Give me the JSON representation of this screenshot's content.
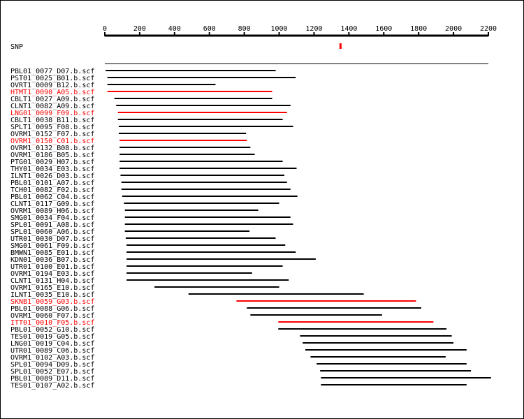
{
  "axis": {
    "min": 0,
    "max": 2200,
    "ticks": [
      0,
      200,
      400,
      600,
      800,
      1000,
      1200,
      1400,
      1600,
      1800,
      2000,
      2200
    ]
  },
  "snp": {
    "label": "SNP",
    "position": 1350,
    "color": "#ff0000"
  },
  "reference": {
    "start": 0,
    "end": 2200
  },
  "colors": {
    "normal": "#000000",
    "highlight": "#ff0000"
  },
  "reads": [
    {
      "name": "PBL01_0077_D07.b.scf",
      "start": 5,
      "end": 980,
      "highlight": false
    },
    {
      "name": "PST01_0025_B01.b.scf",
      "start": 15,
      "end": 1095,
      "highlight": false
    },
    {
      "name": "OVRT1_0009_B12.b.scf",
      "start": 15,
      "end": 635,
      "highlight": false
    },
    {
      "name": "HTMT1_0090_A05.b.scf",
      "start": 15,
      "end": 960,
      "highlight": true
    },
    {
      "name": "CBLT1_0027_A09.b.scf",
      "start": 55,
      "end": 960,
      "highlight": false
    },
    {
      "name": "CLNT1_0082_A09.b.scf",
      "start": 65,
      "end": 1065,
      "highlight": false
    },
    {
      "name": "LNG01_0099_F09.b.scf",
      "start": 75,
      "end": 1045,
      "highlight": true
    },
    {
      "name": "CBLT1_0038_B11.b.scf",
      "start": 75,
      "end": 1020,
      "highlight": false
    },
    {
      "name": "SPLT1_0095_F08.b.scf",
      "start": 80,
      "end": 1080,
      "highlight": false
    },
    {
      "name": "OVRM1_0152_F07.b.scf",
      "start": 80,
      "end": 810,
      "highlight": false
    },
    {
      "name": "OVRM1_0150_C01.b.scf",
      "start": 85,
      "end": 815,
      "highlight": true
    },
    {
      "name": "OVRM1_0132_B08.b.scf",
      "start": 85,
      "end": 835,
      "highlight": false
    },
    {
      "name": "OVRM1_0186_B05.b.scf",
      "start": 85,
      "end": 860,
      "highlight": false
    },
    {
      "name": "PTG01_0029_H07.b.scf",
      "start": 85,
      "end": 1020,
      "highlight": false
    },
    {
      "name": "THY01_0034_E03.b.scf",
      "start": 85,
      "end": 1100,
      "highlight": false
    },
    {
      "name": "ILNT1_0026_D03.b.scf",
      "start": 90,
      "end": 1030,
      "highlight": false
    },
    {
      "name": "PBL01_0101_A07.b.scf",
      "start": 95,
      "end": 1045,
      "highlight": false
    },
    {
      "name": "TCH01_0082_F02.b.scf",
      "start": 95,
      "end": 1065,
      "highlight": false
    },
    {
      "name": "PBL01_0062_C04.b.scf",
      "start": 100,
      "end": 1105,
      "highlight": false
    },
    {
      "name": "CLNT1_0117_G09.b.scf",
      "start": 110,
      "end": 1000,
      "highlight": false
    },
    {
      "name": "OVRM1_0089_H06.b.scf",
      "start": 115,
      "end": 880,
      "highlight": false
    },
    {
      "name": "SMG01_0034_F04.b.scf",
      "start": 115,
      "end": 1065,
      "highlight": false
    },
    {
      "name": "SPL01_0091_A08.b.scf",
      "start": 115,
      "end": 1080,
      "highlight": false
    },
    {
      "name": "SPL01_0060_A06.b.scf",
      "start": 115,
      "end": 830,
      "highlight": false
    },
    {
      "name": "UTR01_0030_D07.b.scf",
      "start": 120,
      "end": 980,
      "highlight": false
    },
    {
      "name": "SMG01_0061_F09.b.scf",
      "start": 125,
      "end": 1035,
      "highlight": false
    },
    {
      "name": "BMWN1_0085_E01.b.scf",
      "start": 125,
      "end": 1095,
      "highlight": false
    },
    {
      "name": "KDN01_0036_B07.b.scf",
      "start": 125,
      "end": 1210,
      "highlight": false
    },
    {
      "name": "UTR01_0100_E01.b.scf",
      "start": 125,
      "end": 1020,
      "highlight": false
    },
    {
      "name": "OVRM1_0194_E03.b.scf",
      "start": 125,
      "end": 845,
      "highlight": false
    },
    {
      "name": "CLNT1_0131_H04.b.scf",
      "start": 125,
      "end": 1055,
      "highlight": false
    },
    {
      "name": "OVRM1_0165_E10.b.scf",
      "start": 285,
      "end": 1000,
      "highlight": false
    },
    {
      "name": "ILNT1_0035_E10.b.scf",
      "start": 480,
      "end": 1485,
      "highlight": false
    },
    {
      "name": "SKNB1_0059_G03.b.scf",
      "start": 755,
      "end": 1785,
      "highlight": true
    },
    {
      "name": "PBL01_0088_G06.b.scf",
      "start": 815,
      "end": 1815,
      "highlight": false
    },
    {
      "name": "OVRM1_0060_F07.b.scf",
      "start": 835,
      "end": 1590,
      "highlight": false
    },
    {
      "name": "ITT01_0010_F05.b.scf",
      "start": 995,
      "end": 1885,
      "highlight": true
    },
    {
      "name": "PBL01_0052_G10.b.scf",
      "start": 995,
      "end": 1960,
      "highlight": false
    },
    {
      "name": "TES01_0019_G05.b.scf",
      "start": 1120,
      "end": 1990,
      "highlight": false
    },
    {
      "name": "LNG01_0019_C04.b.scf",
      "start": 1135,
      "end": 2000,
      "highlight": false
    },
    {
      "name": "UTR01_0089_C06.b.scf",
      "start": 1150,
      "end": 2075,
      "highlight": false
    },
    {
      "name": "OVRM1_0102_A03.b.scf",
      "start": 1180,
      "end": 1955,
      "highlight": false
    },
    {
      "name": "SPL01_0094_D09.b.scf",
      "start": 1215,
      "end": 2075,
      "highlight": false
    },
    {
      "name": "SPL01_0052_E07.b.scf",
      "start": 1235,
      "end": 2100,
      "highlight": false
    },
    {
      "name": "PBL01_0089_D11.b.scf",
      "start": 1240,
      "end": 2215,
      "highlight": false
    },
    {
      "name": "TES01_0107_A02.b.scf",
      "start": 1240,
      "end": 2075,
      "highlight": false
    }
  ]
}
